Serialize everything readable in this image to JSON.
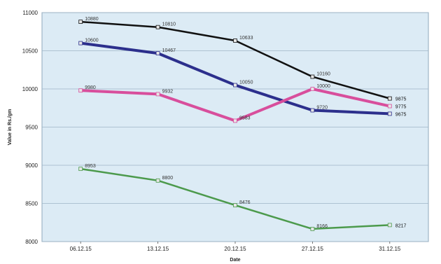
{
  "chart_data": {
    "type": "line",
    "title": "",
    "xlabel": "Date",
    "ylabel": "Value in Rs./gm",
    "categories": [
      "06.12.15",
      "13.12.15",
      "20.12.15",
      "27.12.15",
      "31.12.15"
    ],
    "ylim": [
      8000,
      11000
    ],
    "yticks": [
      8000,
      8500,
      9000,
      9500,
      10000,
      10500,
      11000
    ],
    "grid": true,
    "background_color": "#dcebf5",
    "series": [
      {
        "color": "#111111",
        "values": [
          10880,
          10810,
          10633,
          10160,
          9875
        ],
        "labels": [
          "10880",
          "10810",
          "10633",
          "10160",
          "9875"
        ]
      },
      {
        "color": "#2c2f8c",
        "values": [
          10600,
          10467,
          10050,
          9720,
          9675
        ],
        "labels": [
          "10600",
          "10467",
          "10050",
          "9720",
          "9675"
        ]
      },
      {
        "color": "#d84e9c",
        "values": [
          9980,
          9932,
          9583,
          10000,
          9775
        ],
        "labels": [
          "9980",
          "9932",
          "9583",
          "10000",
          "9775"
        ]
      },
      {
        "color": "#4c9a4c",
        "values": [
          8953,
          8800,
          8476,
          8166,
          8217
        ],
        "labels": [
          "8953",
          "8800",
          "8476",
          "8166",
          "8217"
        ]
      }
    ]
  }
}
